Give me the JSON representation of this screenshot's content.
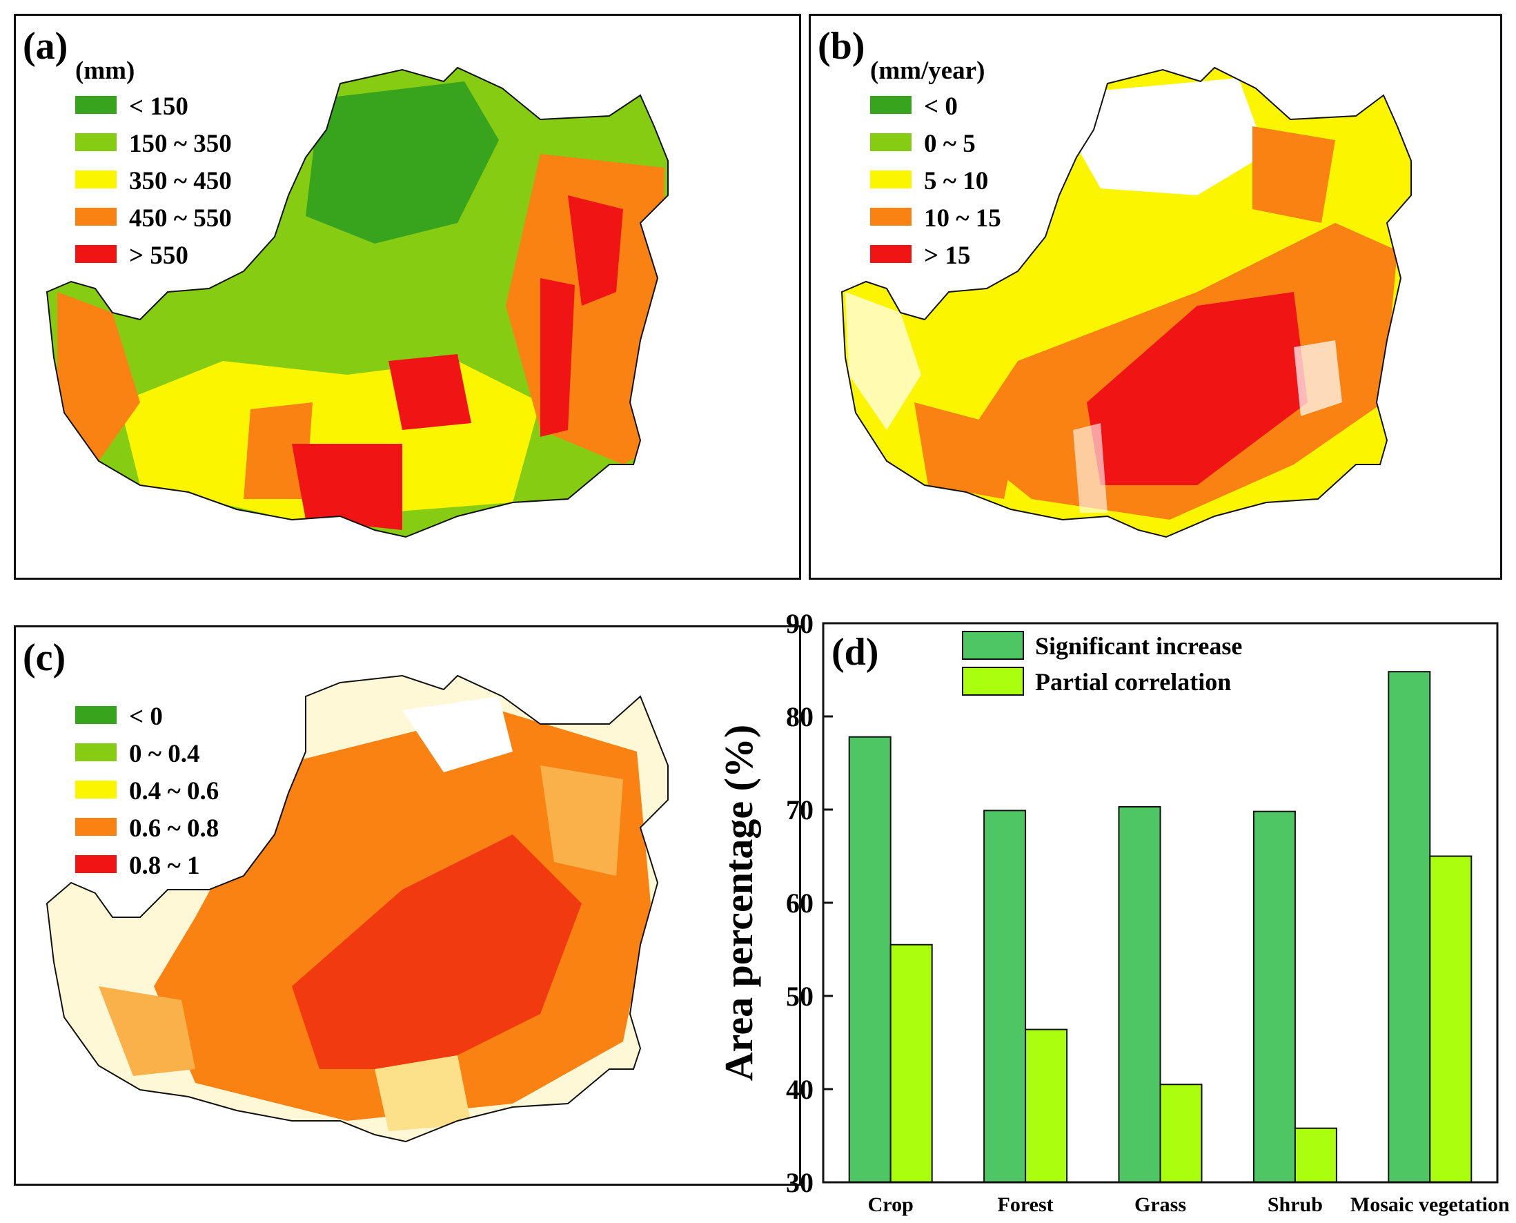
{
  "colors": {
    "dark_green": "#38a31c",
    "light_green": "#86cc12",
    "yellow": "#fbf500",
    "orange": "#f98213",
    "red": "#f01414",
    "bar_green": "#4ec663",
    "bar_lime": "#aaff0e"
  },
  "panel_a": {
    "label": "(a)",
    "unit": "(mm)",
    "legend": [
      "< 150",
      "150 ~ 350",
      "350 ~ 450",
      "450 ~ 550",
      "> 550"
    ]
  },
  "panel_b": {
    "label": "(b)",
    "unit": "(mm/year)",
    "legend": [
      "< 0",
      "0 ~ 5",
      "5 ~ 10",
      "10 ~ 15",
      "> 15"
    ]
  },
  "panel_c": {
    "label": "(c)",
    "legend": [
      "< 0",
      "0 ~ 0.4",
      "0.4 ~ 0.6",
      "0.6 ~ 0.8",
      "0.8 ~ 1"
    ]
  },
  "chart_data": {
    "type": "bar",
    "panel_label": "(d)",
    "categories": [
      "Crop",
      "Forest",
      "Grass",
      "Shrub",
      "Mosaic vegetation"
    ],
    "series": [
      {
        "name": "Significant increase",
        "values": [
          77.8,
          69.9,
          70.3,
          69.8,
          84.8
        ]
      },
      {
        "name": "Partial correlation",
        "values": [
          55.5,
          46.4,
          40.5,
          35.8,
          65.0
        ]
      }
    ],
    "ylabel": "Area percentage (%)",
    "xlabel": "",
    "ylim": [
      30,
      90
    ],
    "yticks": [
      30,
      40,
      50,
      60,
      70,
      80,
      90
    ],
    "legend_position": "top"
  }
}
